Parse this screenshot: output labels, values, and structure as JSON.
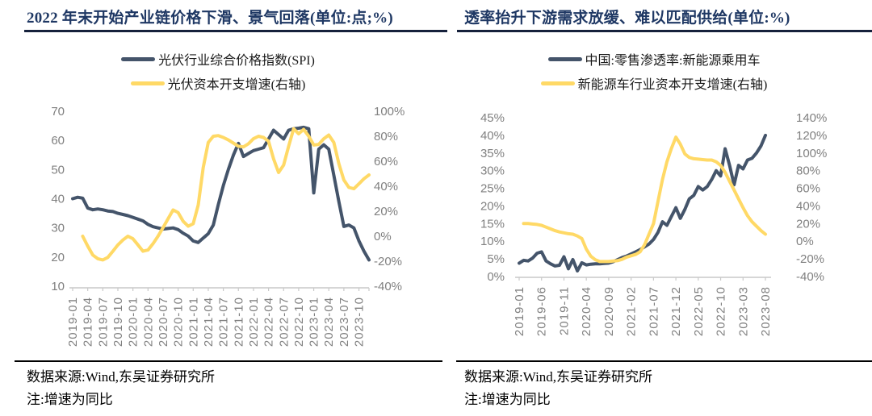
{
  "colors": {
    "series_blue": "#44546A",
    "series_yellow": "#FFD966",
    "title_navy": "#1F3864",
    "axis_text_gray": "#808080",
    "axis_line_gray": "#C9C9C9"
  },
  "panels": [
    {
      "source": "数据来源:Wind,东吴证券研究所",
      "note": "注:增速为同比"
    },
    {
      "source": "数据来源:Wind,东吴证券研究所",
      "note": "注:增速为同比"
    }
  ],
  "chart_data": [
    {
      "type": "line",
      "dual_axis": true,
      "title": "2022 年末开始产业链价格下滑、景气回落(单位:点;%)",
      "left_axis_labels": [
        "70",
        "60",
        "50",
        "40",
        "30",
        "20",
        "10"
      ],
      "left_axis_range": [
        10,
        70
      ],
      "right_axis_labels": [
        "100%",
        "80%",
        "60%",
        "40%",
        "20%",
        "0%",
        "-20%",
        "-40%"
      ],
      "right_axis_range": [
        -40,
        100
      ],
      "x_tick_labels": [
        "2019-01",
        "2019-04",
        "2019-07",
        "2019-10",
        "2020-01",
        "2020-04",
        "2020-07",
        "2020-10",
        "2021-01",
        "2021-04",
        "2021-07",
        "2021-10",
        "2022-01",
        "2022-04",
        "2022-07",
        "2022-10",
        "2023-01",
        "2023-04",
        "2023-07",
        "2023-10"
      ],
      "x_tick_step_months": 3,
      "categories": [
        "2019-01",
        "2019-02",
        "2019-03",
        "2019-04",
        "2019-05",
        "2019-06",
        "2019-07",
        "2019-08",
        "2019-09",
        "2019-10",
        "2019-11",
        "2019-12",
        "2020-01",
        "2020-02",
        "2020-03",
        "2020-04",
        "2020-05",
        "2020-06",
        "2020-07",
        "2020-08",
        "2020-09",
        "2020-10",
        "2020-11",
        "2020-12",
        "2021-01",
        "2021-02",
        "2021-03",
        "2021-04",
        "2021-05",
        "2021-06",
        "2021-07",
        "2021-08",
        "2021-09",
        "2021-10",
        "2021-11",
        "2021-12",
        "2022-01",
        "2022-02",
        "2022-03",
        "2022-04",
        "2022-05",
        "2022-06",
        "2022-07",
        "2022-08",
        "2022-09",
        "2022-10",
        "2022-11",
        "2022-12",
        "2023-01",
        "2023-02",
        "2023-03",
        "2023-04",
        "2023-05",
        "2023-06",
        "2023-07",
        "2023-08",
        "2023-09",
        "2023-10",
        "2023-11",
        "2023-12"
      ],
      "series": [
        {
          "name": "光伏行业综合价格指数(SPI)",
          "axis": "left",
          "color": "#44546A",
          "values": [
            40,
            40.5,
            40.2,
            36.8,
            36.2,
            36.5,
            36.2,
            35.8,
            35.6,
            35.0,
            34.6,
            34.2,
            33.6,
            33.0,
            32.4,
            31.2,
            30.4,
            30.0,
            29.6,
            29.8,
            30.0,
            29.4,
            28.2,
            27.2,
            25.5,
            25.0,
            26.5,
            28.0,
            31.0,
            38.0,
            44.5,
            50.0,
            55.0,
            59.0,
            54.5,
            55.5,
            56.5,
            57.0,
            57.5,
            60.5,
            63.5,
            62.0,
            60.5,
            63.5,
            64.0,
            64.2,
            64.5,
            64.0,
            42.0,
            57.0,
            58.5,
            57.0,
            48.0,
            39.0,
            30.5,
            31.0,
            30.0,
            25.5,
            22.0,
            19.0
          ]
        },
        {
          "name": "光伏资本开支增速(右轴)",
          "axis": "right",
          "color": "#FFD966",
          "values": [
            null,
            null,
            0,
            -8,
            -15,
            -18,
            -19,
            -17,
            -12,
            -7,
            -3,
            0,
            -2,
            -7,
            -12,
            -11,
            -6,
            0,
            7,
            14,
            21,
            19,
            12,
            8,
            10,
            25,
            55,
            75,
            80,
            80.5,
            79,
            77,
            74.5,
            72,
            71.5,
            74,
            78,
            80,
            79,
            76,
            62,
            51,
            57,
            72,
            86,
            82,
            85.5,
            80,
            73,
            73.5,
            78,
            81,
            75,
            58,
            45,
            39,
            38,
            42,
            46,
            49
          ]
        }
      ]
    },
    {
      "type": "line",
      "dual_axis": true,
      "title": "透率抬升下游需求放缓、难以匹配供给(单位:%)",
      "left_axis_labels": [
        "45%",
        "40%",
        "35%",
        "30%",
        "25%",
        "20%",
        "15%",
        "10%",
        "5%",
        "0%"
      ],
      "left_axis_range": [
        0,
        45
      ],
      "right_axis_labels": [
        "140%",
        "120%",
        "100%",
        "80%",
        "60%",
        "40%",
        "20%",
        "0%",
        "-20%",
        "-40%"
      ],
      "right_axis_range": [
        -40,
        140
      ],
      "x_tick_labels": [
        "2019-01",
        "2019-06",
        "2019-11",
        "2020-04",
        "2020-09",
        "2021-02",
        "2021-07",
        "2021-12",
        "2022-05",
        "2022-10",
        "2023-03",
        "2023-08"
      ],
      "x_tick_step_months": 5,
      "categories": [
        "2019-01",
        "2019-02",
        "2019-03",
        "2019-04",
        "2019-05",
        "2019-06",
        "2019-07",
        "2019-08",
        "2019-09",
        "2019-10",
        "2019-11",
        "2019-12",
        "2020-01",
        "2020-02",
        "2020-03",
        "2020-04",
        "2020-05",
        "2020-06",
        "2020-07",
        "2020-08",
        "2020-09",
        "2020-10",
        "2020-11",
        "2020-12",
        "2021-01",
        "2021-02",
        "2021-03",
        "2021-04",
        "2021-05",
        "2021-06",
        "2021-07",
        "2021-08",
        "2021-09",
        "2021-10",
        "2021-11",
        "2021-12",
        "2022-01",
        "2022-02",
        "2022-03",
        "2022-04",
        "2022-05",
        "2022-06",
        "2022-07",
        "2022-08",
        "2022-09",
        "2022-10",
        "2022-11",
        "2022-12",
        "2023-01",
        "2023-02",
        "2023-03",
        "2023-04",
        "2023-05",
        "2023-06",
        "2023-07",
        "2023-08"
      ],
      "series": [
        {
          "name": "中国:零售渗透率:新能源乘用车",
          "axis": "left",
          "color": "#44546A",
          "values": [
            3.8,
            4.6,
            4.4,
            5.2,
            6.6,
            7.0,
            4.4,
            3.6,
            3.0,
            3.2,
            5.6,
            2.2,
            4.8,
            1.6,
            3.9,
            3.3,
            3.5,
            3.6,
            3.6,
            3.7,
            3.8,
            4.2,
            4.8,
            5.4,
            5.8,
            6.4,
            7.0,
            7.6,
            8.4,
            9.2,
            10.5,
            12.5,
            15.5,
            14.5,
            17.0,
            19.5,
            16.5,
            19.0,
            22.0,
            23.0,
            25.5,
            24.5,
            25.5,
            27.5,
            30.0,
            28.5,
            36.2,
            31.5,
            26.0,
            31.5,
            30.5,
            33.0,
            33.5,
            35.0,
            37.0,
            40.0
          ]
        },
        {
          "name": "新能源车行业资本开支增速(右轴)",
          "axis": "right",
          "color": "#FFD966",
          "values": [
            null,
            20,
            20,
            19.5,
            19,
            18,
            16,
            14,
            12,
            10.5,
            9.5,
            8.5,
            8,
            6,
            3,
            -9,
            -17,
            -21,
            -23,
            -23,
            -23,
            -22.5,
            -22,
            -20.5,
            -18,
            -16.5,
            -15,
            -12,
            -4,
            8,
            20,
            45,
            70,
            90,
            105,
            118,
            110,
            99,
            95,
            93.5,
            93,
            92.5,
            92,
            92,
            90,
            86,
            78,
            68,
            58,
            48,
            38,
            29,
            22,
            17,
            12,
            8
          ]
        }
      ]
    }
  ]
}
